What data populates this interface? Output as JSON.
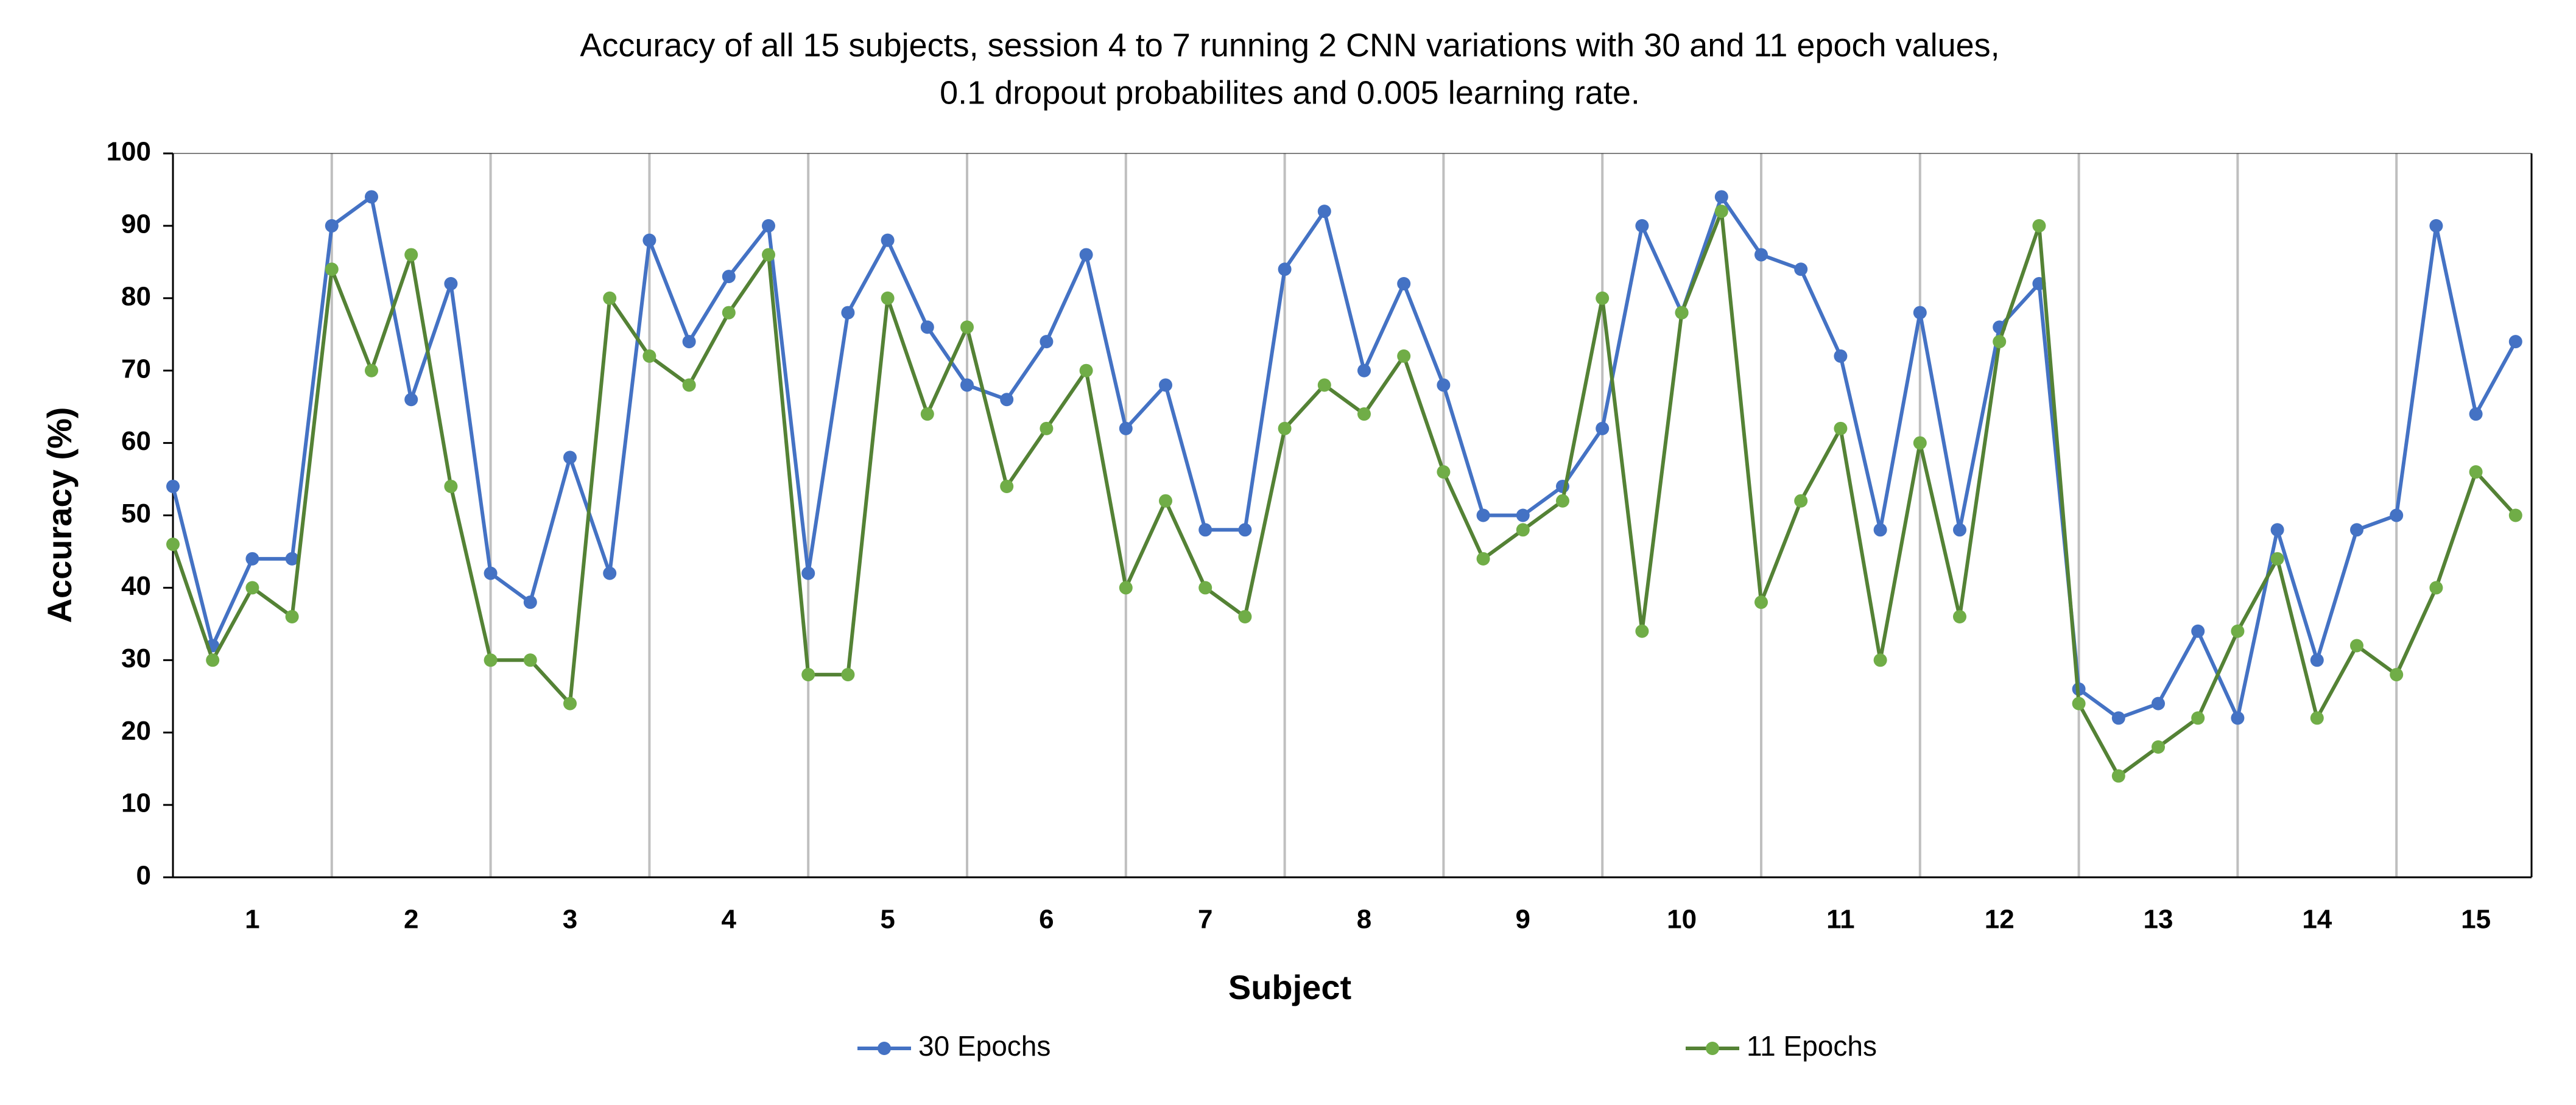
{
  "chart_data": {
    "type": "line",
    "title": [
      "Accuracy of all 15 subjects, session 4 to 7 running 2 CNN variations with 30 and 11 epoch values,",
      "0.1 dropout probabilites and 0.005 learning rate."
    ],
    "xlabel": "Subject",
    "ylabel": "Accuracy (%)",
    "categories": [
      "1",
      "2",
      "3",
      "4",
      "5",
      "6",
      "7",
      "8",
      "9",
      "10",
      "11",
      "12",
      "13",
      "14",
      "15"
    ],
    "series": [
      {
        "name": "30 Epochs",
        "color": "#4472c4",
        "marker_color": "#4472c4",
        "values": [
          [
            54,
            32,
            44,
            44
          ],
          [
            90,
            94,
            66,
            82
          ],
          [
            42,
            38,
            58,
            42
          ],
          [
            88,
            74,
            83,
            90
          ],
          [
            42,
            78,
            88,
            76
          ],
          [
            68,
            66,
            74,
            86
          ],
          [
            62,
            68,
            48,
            48
          ],
          [
            84,
            92,
            70,
            82
          ],
          [
            68,
            50,
            50,
            54
          ],
          [
            62,
            90,
            78,
            94
          ],
          [
            86,
            84,
            72,
            48
          ],
          [
            78,
            48,
            76,
            82
          ],
          [
            26,
            22,
            24,
            34
          ],
          [
            22,
            48,
            30,
            48
          ],
          [
            50,
            90,
            64,
            74
          ]
        ]
      },
      {
        "name": "11 Epochs",
        "color": "#548235",
        "marker_color": "#70ad47",
        "values": [
          [
            46,
            30,
            40,
            36
          ],
          [
            84,
            70,
            86,
            54
          ],
          [
            30,
            30,
            24,
            80
          ],
          [
            72,
            68,
            78,
            86
          ],
          [
            28,
            28,
            80,
            64
          ],
          [
            76,
            54,
            62,
            70
          ],
          [
            40,
            52,
            40,
            36
          ],
          [
            62,
            68,
            64,
            72
          ],
          [
            56,
            44,
            48,
            52
          ],
          [
            80,
            34,
            78,
            92
          ],
          [
            38,
            52,
            62,
            30
          ],
          [
            60,
            36,
            74,
            90
          ],
          [
            24,
            14,
            18,
            22
          ],
          [
            34,
            44,
            22,
            32
          ],
          [
            28,
            40,
            56,
            50
          ]
        ]
      }
    ],
    "ylim": [
      0,
      100
    ],
    "yticks": [
      0,
      10,
      20,
      30,
      40,
      50,
      60,
      70,
      80,
      90,
      100
    ],
    "legend": "bottom"
  }
}
